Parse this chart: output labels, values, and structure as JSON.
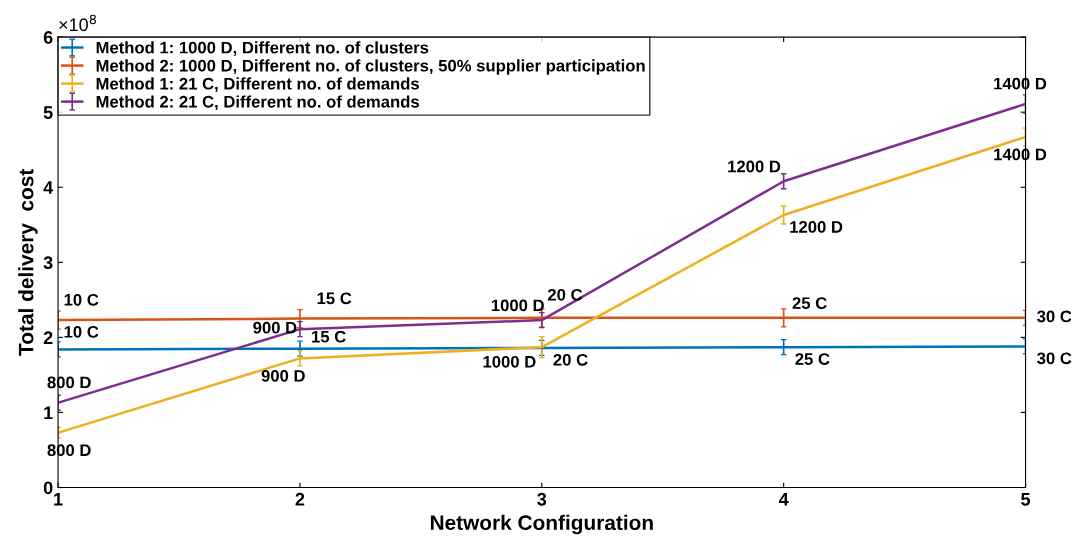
{
  "chart_data": {
    "type": "line",
    "xlabel": "Network Configuration",
    "ylabel": "Total delivery  cost",
    "x": [
      1,
      2,
      3,
      4,
      5
    ],
    "xlim": [
      1,
      5
    ],
    "xticks": [
      1,
      2,
      3,
      4,
      5
    ],
    "ylim": [
      0,
      6
    ],
    "yticks": [
      0,
      1,
      2,
      3,
      4,
      5,
      6
    ],
    "annotations": [
      "×10$^{8}$",
      {
        "text": "10 C",
        "x": 1,
        "y": 1.84
      },
      {
        "text": "15 C",
        "x": 2,
        "y": 1.85
      },
      {
        "text": "20 C",
        "x": 3,
        "y": 1.86
      },
      {
        "text": "25 C",
        "x": 4,
        "y": 1.87
      },
      {
        "text": "30 C",
        "x": 5,
        "y": 1.88
      },
      {
        "text": "10 C",
        "x": 1,
        "y": 2.23
      },
      {
        "text": "15 C",
        "x": 2,
        "y": 2.25
      },
      {
        "text": "20 C",
        "x": 3,
        "y": 2.26
      },
      {
        "text": "25 C",
        "x": 4,
        "y": 2.26
      },
      {
        "text": "30 C",
        "x": 5,
        "y": 2.26
      },
      {
        "text": "800 D",
        "x": 1,
        "y": 0.73
      },
      {
        "text": "900 D",
        "x": 2,
        "y": 1.72
      },
      {
        "text": "1000 D",
        "x": 3,
        "y": 1.87
      },
      {
        "text": "1200 D",
        "x": 4,
        "y": 3.63
      },
      {
        "text": "1400 D",
        "x": 5,
        "y": 4.67
      },
      {
        "text": "800 D",
        "x": 1,
        "y": 1.13
      },
      {
        "text": "900 D",
        "x": 2,
        "y": 2.11
      },
      {
        "text": "1000 D",
        "x": 3,
        "y": 2.23
      },
      {
        "text": "1200 D",
        "x": 4,
        "y": 4.08
      },
      {
        "text": "1400 D",
        "x": 5,
        "y": 5.11
      }
    ],
    "legend": "top left",
    "grid": false,
    "marker": "none",
    "line_style": "solid",
    "series": [
      {
        "name": "Method 1: 1000 D, Different no. of clusters",
        "color": "#0072bd",
        "values": [
          1.84,
          1.85,
          1.86,
          1.87,
          1.88
        ],
        "errors": [
          0.1,
          0.1,
          0.1,
          0.1,
          0.1
        ]
      },
      {
        "name": "Method 2: 1000 D, Different no. of clusters, 50% supplier participation",
        "color": "#d95319",
        "values": [
          2.23,
          2.25,
          2.26,
          2.26,
          2.26
        ],
        "errors": [
          0.12,
          0.12,
          0.12,
          0.12,
          0.1
        ]
      },
      {
        "name": "Method 1: 21 C, Different no. of demands",
        "color": "#edb120",
        "values": [
          0.73,
          1.72,
          1.87,
          3.63,
          4.67
        ],
        "errors": [
          0.07,
          0.1,
          0.14,
          0.12,
          0.12
        ]
      },
      {
        "name": "Method 2: 21 C, Different no. of demands",
        "color": "#7e2f8e",
        "values": [
          1.13,
          2.11,
          2.23,
          4.08,
          5.11
        ],
        "errors": [
          0.1,
          0.1,
          0.1,
          0.1,
          0.12
        ]
      }
    ]
  }
}
